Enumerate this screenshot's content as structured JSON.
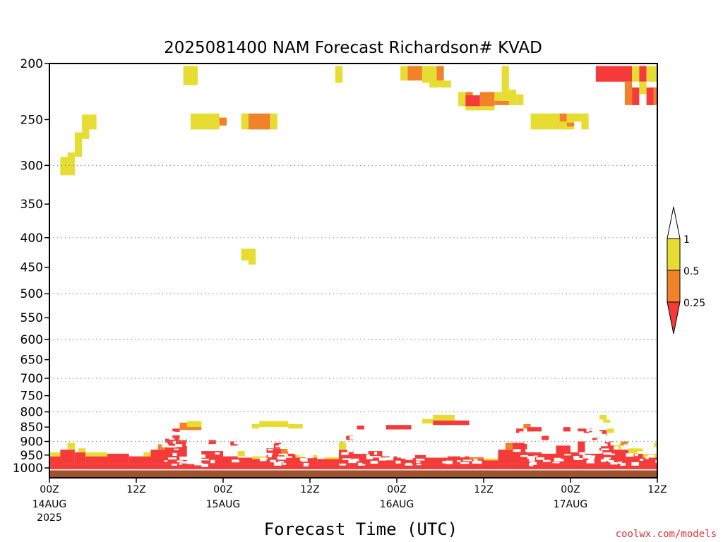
{
  "chart_data": {
    "type": "heatmap",
    "title": "2025081400 NAM Forecast Richardson# KVAD",
    "xlabel": "Forecast Time (UTC)",
    "ylabel": "",
    "credit": "coolwx.com/models",
    "y_scale": "log",
    "y_reversed": true,
    "ylim": [
      1040,
      200
    ],
    "xlim": [
      0,
      84
    ],
    "yticks": [
      200,
      250,
      300,
      350,
      400,
      450,
      500,
      550,
      600,
      650,
      700,
      750,
      800,
      850,
      900,
      950,
      1000
    ],
    "yticks_dotted_gridlines": [
      300,
      400,
      500,
      600,
      700,
      800,
      900
    ],
    "xticks": [
      {
        "hour": 0,
        "label": "00Z",
        "date": "14AUG",
        "year": "2025"
      },
      {
        "hour": 12,
        "label": "12Z",
        "date": "",
        "year": ""
      },
      {
        "hour": 24,
        "label": "00Z",
        "date": "15AUG",
        "year": ""
      },
      {
        "hour": 36,
        "label": "12Z",
        "date": "",
        "year": ""
      },
      {
        "hour": 48,
        "label": "00Z",
        "date": "16AUG",
        "year": ""
      },
      {
        "hour": 60,
        "label": "12Z",
        "date": "",
        "year": ""
      },
      {
        "hour": 72,
        "label": "00Z",
        "date": "17AUG",
        "year": ""
      },
      {
        "hour": 84,
        "label": "12Z",
        "date": "",
        "year": ""
      }
    ],
    "colorbar": {
      "levels": [
        "0.25",
        "0.5",
        "1"
      ],
      "bins": [
        {
          "range": "<0.25",
          "color": "#f53a3a"
        },
        {
          "range": "0.25-0.5",
          "color": "#f0832a"
        },
        {
          "range": "0.5-1",
          "color": "#e6dc32"
        },
        {
          "range": ">1",
          "color": "#ffffff"
        }
      ]
    },
    "ground_color": "#a0522d",
    "ground_pressure_hpa": 1010,
    "cells": [
      {
        "t0": 1.5,
        "t1": 3.5,
        "p_top": 290,
        "p_bot": 312,
        "v": "0.5-1"
      },
      {
        "t0": 2.5,
        "t1": 3.5,
        "p_top": 285,
        "p_bot": 295,
        "v": "0.5-1"
      },
      {
        "t0": 3.5,
        "t1": 4.5,
        "p_top": 263,
        "p_bot": 290,
        "v": "0.5-1"
      },
      {
        "t0": 4.5,
        "t1": 5.5,
        "p_top": 245,
        "p_bot": 270,
        "v": "0.5-1"
      },
      {
        "t0": 5.5,
        "t1": 6.5,
        "p_top": 245,
        "p_bot": 260,
        "v": "0.5-1"
      },
      {
        "t0": 18.5,
        "t1": 20.5,
        "p_top": 202,
        "p_bot": 218,
        "v": "0.5-1"
      },
      {
        "t0": 19.5,
        "t1": 22.5,
        "p_top": 244,
        "p_bot": 260,
        "v": "0.5-1"
      },
      {
        "t0": 22.5,
        "t1": 23.5,
        "p_top": 244,
        "p_bot": 260,
        "v": "0.5-1"
      },
      {
        "t0": 23.5,
        "t1": 24.5,
        "p_top": 248,
        "p_bot": 256,
        "v": "0.25-0.5"
      },
      {
        "t0": 26.5,
        "t1": 27.5,
        "p_top": 244,
        "p_bot": 260,
        "v": "0.5-1"
      },
      {
        "t0": 27.5,
        "t1": 30.5,
        "p_top": 244,
        "p_bot": 260,
        "v": "0.25-0.5"
      },
      {
        "t0": 30.5,
        "t1": 31.5,
        "p_top": 244,
        "p_bot": 260,
        "v": "0.5-1"
      },
      {
        "t0": 26.5,
        "t1": 28.5,
        "p_top": 418,
        "p_bot": 438,
        "v": "0.5-1"
      },
      {
        "t0": 27.5,
        "t1": 28.5,
        "p_top": 430,
        "p_bot": 445,
        "v": "0.5-1"
      },
      {
        "t0": 39.5,
        "t1": 40.5,
        "p_top": 202,
        "p_bot": 216,
        "v": "0.5-1"
      },
      {
        "t0": 48.5,
        "t1": 49.5,
        "p_top": 202,
        "p_bot": 214,
        "v": "0.5-1"
      },
      {
        "t0": 49.5,
        "t1": 51.5,
        "p_top": 202,
        "p_bot": 214,
        "v": "0.25-0.5"
      },
      {
        "t0": 51.5,
        "t1": 53.5,
        "p_top": 202,
        "p_bot": 216,
        "v": "0.5-1"
      },
      {
        "t0": 53.5,
        "t1": 54.5,
        "p_top": 202,
        "p_bot": 214,
        "v": "0.25-0.5"
      },
      {
        "t0": 52.5,
        "t1": 55.5,
        "p_top": 214,
        "p_bot": 220,
        "v": "0.5-1"
      },
      {
        "t0": 56.5,
        "t1": 57.5,
        "p_top": 224,
        "p_bot": 237,
        "v": "0.5-1"
      },
      {
        "t0": 57.5,
        "t1": 58.5,
        "p_top": 224,
        "p_bot": 237,
        "v": "0.25-0.5"
      },
      {
        "t0": 57.5,
        "t1": 59.5,
        "p_top": 227,
        "p_bot": 237,
        "v": "<0.25"
      },
      {
        "t0": 59.5,
        "t1": 61.5,
        "p_top": 224,
        "p_bot": 237,
        "v": "0.25-0.5"
      },
      {
        "t0": 61.5,
        "t1": 62.5,
        "p_top": 224,
        "p_bot": 232,
        "v": "0.5-1"
      },
      {
        "t0": 61.5,
        "t1": 63.5,
        "p_top": 232,
        "p_bot": 236,
        "v": "0.25-0.5"
      },
      {
        "t0": 57.5,
        "t1": 61.5,
        "p_top": 237,
        "p_bot": 241,
        "v": "0.5-1"
      },
      {
        "t0": 62.5,
        "t1": 63.5,
        "p_top": 202,
        "p_bot": 232,
        "v": "0.5-1"
      },
      {
        "t0": 63.5,
        "t1": 64.5,
        "p_top": 222,
        "p_bot": 236,
        "v": "0.5-1"
      },
      {
        "t0": 64.5,
        "t1": 65.5,
        "p_top": 226,
        "p_bot": 236,
        "v": "0.5-1"
      },
      {
        "t0": 66.5,
        "t1": 70.5,
        "p_top": 244,
        "p_bot": 260,
        "v": "0.5-1"
      },
      {
        "t0": 70.5,
        "t1": 71.5,
        "p_top": 244,
        "p_bot": 256,
        "v": "0.25-0.5"
      },
      {
        "t0": 70.5,
        "t1": 72.5,
        "p_top": 252,
        "p_bot": 260,
        "v": "0.5-1"
      },
      {
        "t0": 71.5,
        "t1": 73.5,
        "p_top": 244,
        "p_bot": 252,
        "v": "0.5-1"
      },
      {
        "t0": 71.5,
        "t1": 72.5,
        "p_top": 253,
        "p_bot": 257,
        "v": "0.25-0.5"
      },
      {
        "t0": 73.5,
        "t1": 74.5,
        "p_top": 244,
        "p_bot": 260,
        "v": "0.5-1"
      },
      {
        "t0": 75.5,
        "t1": 80.5,
        "p_top": 202,
        "p_bot": 215,
        "v": "<0.25"
      },
      {
        "t0": 80.5,
        "t1": 81.5,
        "p_top": 202,
        "p_bot": 215,
        "v": "0.5-1"
      },
      {
        "t0": 81.5,
        "t1": 82.5,
        "p_top": 202,
        "p_bot": 215,
        "v": "<0.25"
      },
      {
        "t0": 82.5,
        "t1": 84,
        "p_top": 202,
        "p_bot": 215,
        "v": "0.5-1"
      },
      {
        "t0": 79.5,
        "t1": 80.5,
        "p_top": 215,
        "p_bot": 236,
        "v": "0.25-0.5"
      },
      {
        "t0": 80.5,
        "t1": 81.5,
        "p_top": 220,
        "p_bot": 236,
        "v": "<0.25"
      },
      {
        "t0": 81.5,
        "t1": 82.5,
        "p_top": 215,
        "p_bot": 226,
        "v": "0.5-1"
      },
      {
        "t0": 82.5,
        "t1": 83.5,
        "p_top": 220,
        "p_bot": 236,
        "v": "<0.25"
      },
      {
        "t0": 83.5,
        "t1": 84,
        "p_top": 220,
        "p_bot": 236,
        "v": "0.25-0.5"
      },
      {
        "t0": 0,
        "t1": 84,
        "p_top": 985,
        "p_bot": 1010,
        "v": "<0.25"
      },
      {
        "t0": 0,
        "t1": 2,
        "p_top": 955,
        "p_bot": 985,
        "v": "<0.25"
      },
      {
        "t0": 0,
        "t1": 2,
        "p_top": 940,
        "p_bot": 955,
        "v": "0.5-1"
      },
      {
        "t0": 1.5,
        "t1": 3.5,
        "p_top": 930,
        "p_bot": 985,
        "v": "<0.25"
      },
      {
        "t0": 2.5,
        "t1": 3.5,
        "p_top": 905,
        "p_bot": 930,
        "v": "0.5-1"
      },
      {
        "t0": 3.5,
        "t1": 5,
        "p_top": 940,
        "p_bot": 985,
        "v": "<0.25"
      },
      {
        "t0": 4,
        "t1": 5,
        "p_top": 925,
        "p_bot": 940,
        "v": "0.5-1"
      },
      {
        "t0": 5,
        "t1": 8,
        "p_top": 955,
        "p_bot": 985,
        "v": "<0.25"
      },
      {
        "t0": 5,
        "t1": 8,
        "p_top": 940,
        "p_bot": 955,
        "v": "0.5-1"
      },
      {
        "t0": 8,
        "t1": 11,
        "p_top": 945,
        "p_bot": 985,
        "v": "<0.25"
      },
      {
        "t0": 11,
        "t1": 14,
        "p_top": 955,
        "p_bot": 985,
        "v": "<0.25"
      },
      {
        "t0": 13,
        "t1": 14,
        "p_top": 940,
        "p_bot": 955,
        "v": "0.5-1"
      },
      {
        "t0": 14,
        "t1": 16,
        "p_top": 930,
        "p_bot": 985,
        "v": "<0.25"
      },
      {
        "t0": 15,
        "t1": 16,
        "p_top": 910,
        "p_bot": 930,
        "v": "0.25-0.5"
      },
      {
        "t0": 16,
        "t1": 19,
        "p_top": 890,
        "p_bot": 985,
        "v": "<0.25"
      },
      {
        "t0": 17,
        "t1": 18,
        "p_top": 855,
        "p_bot": 890,
        "v": "<0.25"
      },
      {
        "t0": 18,
        "t1": 21,
        "p_top": 835,
        "p_bot": 860,
        "v": "0.25-0.5"
      },
      {
        "t0": 19,
        "t1": 21,
        "p_top": 830,
        "p_bot": 850,
        "v": "0.5-1"
      },
      {
        "t0": 21,
        "t1": 24,
        "p_top": 935,
        "p_bot": 985,
        "v": "<0.25"
      },
      {
        "t0": 22,
        "t1": 23,
        "p_top": 895,
        "p_bot": 915,
        "v": "<0.25"
      },
      {
        "t0": 24,
        "t1": 26,
        "p_top": 955,
        "p_bot": 985,
        "v": "<0.25"
      },
      {
        "t0": 25,
        "t1": 26,
        "p_top": 900,
        "p_bot": 915,
        "v": "<0.25"
      },
      {
        "t0": 26,
        "t1": 28,
        "p_top": 960,
        "p_bot": 985,
        "v": "<0.25"
      },
      {
        "t0": 26,
        "t1": 27,
        "p_top": 935,
        "p_bot": 955,
        "v": "0.5-1"
      },
      {
        "t0": 28,
        "t1": 30,
        "p_top": 965,
        "p_bot": 985,
        "v": "<0.25"
      },
      {
        "t0": 28,
        "t1": 31,
        "p_top": 955,
        "p_bot": 965,
        "v": "0.5-1"
      },
      {
        "t0": 28,
        "t1": 29,
        "p_top": 840,
        "p_bot": 855,
        "v": "0.5-1"
      },
      {
        "t0": 29,
        "t1": 33,
        "p_top": 830,
        "p_bot": 850,
        "v": "0.5-1"
      },
      {
        "t0": 33,
        "t1": 35,
        "p_top": 840,
        "p_bot": 855,
        "v": "0.5-1"
      },
      {
        "t0": 30,
        "t1": 32,
        "p_top": 925,
        "p_bot": 985,
        "v": "<0.25"
      },
      {
        "t0": 31,
        "t1": 32,
        "p_top": 905,
        "p_bot": 925,
        "v": "<0.25"
      },
      {
        "t0": 32,
        "t1": 34,
        "p_top": 945,
        "p_bot": 985,
        "v": "<0.25"
      },
      {
        "t0": 32,
        "t1": 33,
        "p_top": 925,
        "p_bot": 945,
        "v": "0.25-0.5"
      },
      {
        "t0": 34,
        "t1": 37,
        "p_top": 960,
        "p_bot": 985,
        "v": "<0.25"
      },
      {
        "t0": 34,
        "t1": 37,
        "p_top": 950,
        "p_bot": 960,
        "v": "0.5-1"
      },
      {
        "t0": 37,
        "t1": 40,
        "p_top": 965,
        "p_bot": 985,
        "v": "<0.25"
      },
      {
        "t0": 38,
        "t1": 40,
        "p_top": 958,
        "p_bot": 965,
        "v": "0.5-1"
      },
      {
        "t0": 40,
        "t1": 42,
        "p_top": 930,
        "p_bot": 985,
        "v": "<0.25"
      },
      {
        "t0": 40,
        "t1": 41,
        "p_top": 900,
        "p_bot": 930,
        "v": "0.5-1"
      },
      {
        "t0": 41,
        "t1": 42,
        "p_top": 880,
        "p_bot": 895,
        "v": "<0.25"
      },
      {
        "t0": 42,
        "t1": 44,
        "p_top": 945,
        "p_bot": 985,
        "v": "<0.25"
      },
      {
        "t0": 42.5,
        "t1": 43.5,
        "p_top": 845,
        "p_bot": 858,
        "v": "<0.25"
      },
      {
        "t0": 44,
        "t1": 46,
        "p_top": 935,
        "p_bot": 985,
        "v": "<0.25"
      },
      {
        "t0": 46,
        "t1": 48,
        "p_top": 955,
        "p_bot": 985,
        "v": "<0.25"
      },
      {
        "t0": 46.5,
        "t1": 50,
        "p_top": 843,
        "p_bot": 858,
        "v": "<0.25"
      },
      {
        "t0": 48,
        "t1": 50,
        "p_top": 960,
        "p_bot": 985,
        "v": "<0.25"
      },
      {
        "t0": 50,
        "t1": 52,
        "p_top": 950,
        "p_bot": 985,
        "v": "<0.25"
      },
      {
        "t0": 52,
        "t1": 55,
        "p_top": 960,
        "p_bot": 985,
        "v": "<0.25"
      },
      {
        "t0": 51.5,
        "t1": 53,
        "p_top": 823,
        "p_bot": 838,
        "v": "0.5-1"
      },
      {
        "t0": 53,
        "t1": 56,
        "p_top": 810,
        "p_bot": 828,
        "v": "0.5-1"
      },
      {
        "t0": 53,
        "t1": 58,
        "p_top": 828,
        "p_bot": 843,
        "v": "<0.25"
      },
      {
        "t0": 55,
        "t1": 58,
        "p_top": 955,
        "p_bot": 985,
        "v": "<0.25"
      },
      {
        "t0": 58,
        "t1": 60,
        "p_top": 965,
        "p_bot": 985,
        "v": "<0.25"
      },
      {
        "t0": 58,
        "t1": 60,
        "p_top": 958,
        "p_bot": 965,
        "v": "0.25-0.5"
      },
      {
        "t0": 60,
        "t1": 62,
        "p_top": 970,
        "p_bot": 985,
        "v": "<0.25"
      },
      {
        "t0": 60,
        "t1": 62,
        "p_top": 963,
        "p_bot": 970,
        "v": "0.5-1"
      },
      {
        "t0": 62,
        "t1": 64,
        "p_top": 930,
        "p_bot": 985,
        "v": "<0.25"
      },
      {
        "t0": 63,
        "t1": 64,
        "p_top": 905,
        "p_bot": 930,
        "v": "0.25-0.5"
      },
      {
        "t0": 64,
        "t1": 66,
        "p_top": 905,
        "p_bot": 985,
        "v": "<0.25"
      },
      {
        "t0": 64.5,
        "t1": 65.5,
        "p_top": 855,
        "p_bot": 870,
        "v": "<0.25"
      },
      {
        "t0": 65.5,
        "t1": 66.5,
        "p_top": 840,
        "p_bot": 855,
        "v": "0.25-0.5"
      },
      {
        "t0": 66,
        "t1": 68,
        "p_top": 940,
        "p_bot": 985,
        "v": "<0.25"
      },
      {
        "t0": 66,
        "t1": 68,
        "p_top": 850,
        "p_bot": 865,
        "v": "<0.25"
      },
      {
        "t0": 68,
        "t1": 70,
        "p_top": 945,
        "p_bot": 985,
        "v": "<0.25"
      },
      {
        "t0": 68,
        "t1": 69,
        "p_top": 880,
        "p_bot": 895,
        "v": "<0.25"
      },
      {
        "t0": 70,
        "t1": 72,
        "p_top": 915,
        "p_bot": 985,
        "v": "<0.25"
      },
      {
        "t0": 71,
        "t1": 72,
        "p_top": 850,
        "p_bot": 865,
        "v": "<0.25"
      },
      {
        "t0": 72,
        "t1": 73,
        "p_top": 940,
        "p_bot": 985,
        "v": "<0.25"
      },
      {
        "t0": 73,
        "t1": 74,
        "p_top": 900,
        "p_bot": 985,
        "v": "<0.25"
      },
      {
        "t0": 73,
        "t1": 75,
        "p_top": 855,
        "p_bot": 870,
        "v": "<0.25"
      },
      {
        "t0": 74,
        "t1": 76,
        "p_top": 945,
        "p_bot": 985,
        "v": "<0.25"
      },
      {
        "t0": 75,
        "t1": 76,
        "p_top": 880,
        "p_bot": 895,
        "v": "<0.25"
      },
      {
        "t0": 76,
        "t1": 77,
        "p_top": 810,
        "p_bot": 825,
        "v": "0.5-1"
      },
      {
        "t0": 76.5,
        "t1": 77.5,
        "p_top": 825,
        "p_bot": 835,
        "v": "0.5-1"
      },
      {
        "t0": 76,
        "t1": 77,
        "p_top": 860,
        "p_bot": 880,
        "v": "<0.25"
      },
      {
        "t0": 76,
        "t1": 78,
        "p_top": 900,
        "p_bot": 985,
        "v": "<0.25"
      },
      {
        "t0": 77,
        "t1": 78,
        "p_top": 855,
        "p_bot": 870,
        "v": "0.5-1"
      },
      {
        "t0": 78,
        "t1": 80,
        "p_top": 930,
        "p_bot": 985,
        "v": "<0.25"
      },
      {
        "t0": 78,
        "t1": 79,
        "p_top": 905,
        "p_bot": 930,
        "v": "0.5-1"
      },
      {
        "t0": 79,
        "t1": 80,
        "p_top": 900,
        "p_bot": 915,
        "v": "0.25-0.5"
      },
      {
        "t0": 80,
        "t1": 82,
        "p_top": 945,
        "p_bot": 985,
        "v": "<0.25"
      },
      {
        "t0": 80,
        "t1": 82,
        "p_top": 925,
        "p_bot": 945,
        "v": "0.5-1"
      },
      {
        "t0": 82,
        "t1": 84,
        "p_top": 960,
        "p_bot": 985,
        "v": "<0.25"
      },
      {
        "t0": 82,
        "t1": 84,
        "p_top": 945,
        "p_bot": 960,
        "v": "0.5-1"
      },
      {
        "t0": 83.5,
        "t1": 84,
        "p_top": 905,
        "p_bot": 920,
        "v": "0.5-1"
      }
    ],
    "speckle_regions": [
      {
        "t0": 15,
        "t1": 26,
        "p_top": 860,
        "p_bot": 985
      },
      {
        "t0": 28,
        "t1": 36,
        "p_top": 895,
        "p_bot": 985
      },
      {
        "t0": 40,
        "t1": 51,
        "p_top": 880,
        "p_bot": 985
      },
      {
        "t0": 52,
        "t1": 62,
        "p_top": 855,
        "p_bot": 980
      },
      {
        "t0": 64,
        "t1": 76,
        "p_top": 850,
        "p_bot": 985
      },
      {
        "t0": 76,
        "t1": 84,
        "p_top": 870,
        "p_bot": 985
      }
    ]
  }
}
